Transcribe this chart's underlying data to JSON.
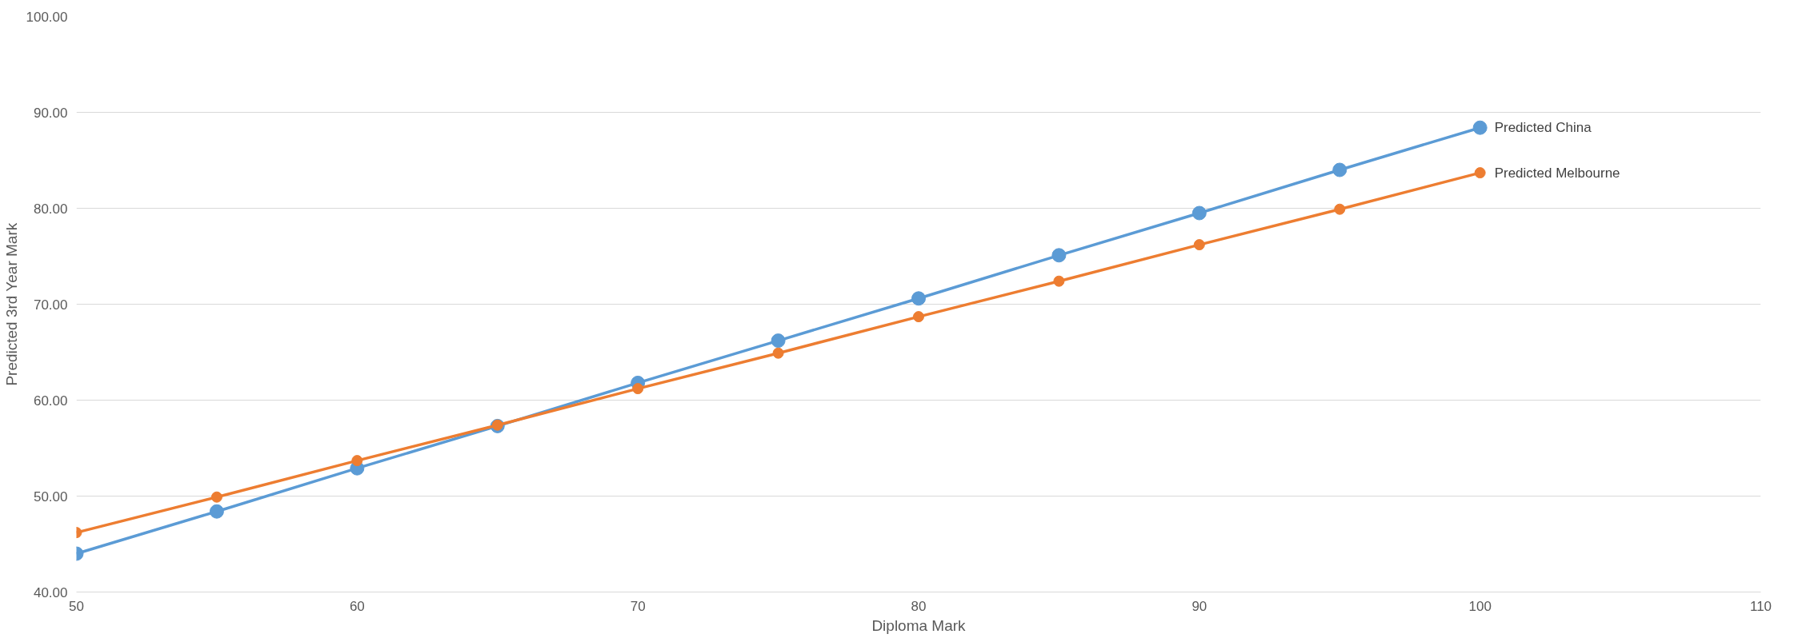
{
  "chart_data": {
    "type": "line",
    "xlabel": "Diploma Mark",
    "ylabel": "Predicted 3rd Year Mark",
    "x": [
      50,
      55,
      60,
      65,
      70,
      75,
      80,
      85,
      90,
      95,
      100
    ],
    "series": [
      {
        "name": "Predicted China",
        "color": "#5b9bd5",
        "values": [
          44.0,
          48.4,
          52.9,
          57.3,
          61.8,
          66.2,
          70.6,
          75.1,
          79.5,
          84.0,
          88.4
        ]
      },
      {
        "name": "Predicted Melbourne",
        "color": "#ed7d31",
        "values": [
          46.2,
          49.9,
          53.7,
          57.4,
          61.2,
          64.9,
          68.7,
          72.4,
          76.2,
          79.9,
          83.7
        ]
      }
    ],
    "xlim": [
      50,
      110
    ],
    "xticks": [
      50,
      60,
      70,
      80,
      90,
      100,
      110
    ],
    "ylim": [
      40,
      100
    ],
    "yticks": [
      {
        "value": 40,
        "label": "40.00"
      },
      {
        "value": 50,
        "label": "50.00"
      },
      {
        "value": 60,
        "label": "60.00"
      },
      {
        "value": 70,
        "label": "70.00"
      },
      {
        "value": 80,
        "label": "80.00"
      },
      {
        "value": 90,
        "label": "90.00"
      },
      {
        "value": 100,
        "label": "100.00"
      }
    ],
    "grid": "y",
    "marker": "circle",
    "line_style": "solid",
    "legend": false
  }
}
